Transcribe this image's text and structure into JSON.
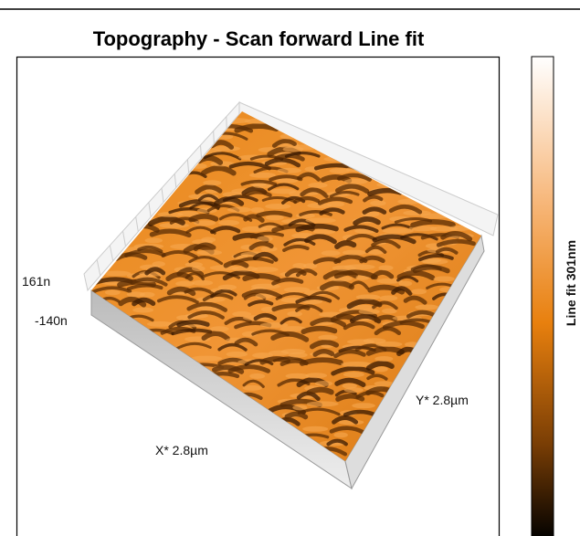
{
  "title": "Topography - Scan forward   Line fit",
  "axes": {
    "z_max": "161n",
    "z_min": "-140n",
    "x_label": "X* 2.8µm",
    "y_label": "Y* 2.8µm"
  },
  "colorbar": {
    "label": "Line fit 301nm"
  }
}
